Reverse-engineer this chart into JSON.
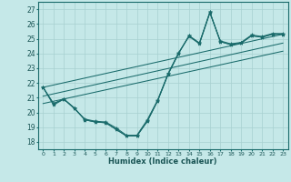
{
  "xlabel": "Humidex (Indice chaleur)",
  "bg_color": "#c5e8e8",
  "line_color": "#1a6b6b",
  "grid_color": "#a8d0d0",
  "xlim": [
    -0.5,
    23.5
  ],
  "ylim": [
    17.5,
    27.5
  ],
  "xticks": [
    0,
    1,
    2,
    3,
    4,
    5,
    6,
    7,
    8,
    9,
    10,
    11,
    12,
    13,
    14,
    15,
    16,
    17,
    18,
    19,
    20,
    21,
    22,
    23
  ],
  "yticks": [
    18,
    19,
    20,
    21,
    22,
    23,
    24,
    25,
    26,
    27
  ],
  "series1": [
    21.7,
    20.6,
    20.9,
    20.3,
    19.5,
    19.35,
    19.3,
    18.85,
    18.4,
    18.4,
    19.4,
    20.8,
    22.6,
    24.0,
    25.2,
    24.7,
    26.8,
    24.8,
    24.6,
    24.7,
    25.2,
    25.1,
    25.3,
    25.3
  ],
  "series2": [
    21.7,
    20.6,
    20.9,
    20.25,
    19.55,
    19.4,
    19.35,
    18.95,
    18.45,
    18.45,
    19.5,
    20.85,
    22.65,
    24.05,
    25.15,
    24.65,
    26.75,
    24.85,
    24.65,
    24.75,
    25.25,
    25.15,
    25.35,
    25.35
  ],
  "series3": [
    21.7,
    20.5,
    20.9,
    20.3,
    19.5,
    19.35,
    19.3,
    18.85,
    18.4,
    18.4,
    19.4,
    20.8,
    22.6,
    24.0,
    25.2,
    24.7,
    26.8,
    24.8,
    24.6,
    24.7,
    25.2,
    25.1,
    25.3,
    25.3
  ],
  "trend_lines": [
    {
      "x0": 0,
      "y0": 21.7,
      "x1": 23,
      "y1": 25.3
    },
    {
      "x0": 0,
      "y0": 21.1,
      "x1": 23,
      "y1": 24.7
    },
    {
      "x0": 0,
      "y0": 20.6,
      "x1": 23,
      "y1": 24.15
    }
  ]
}
